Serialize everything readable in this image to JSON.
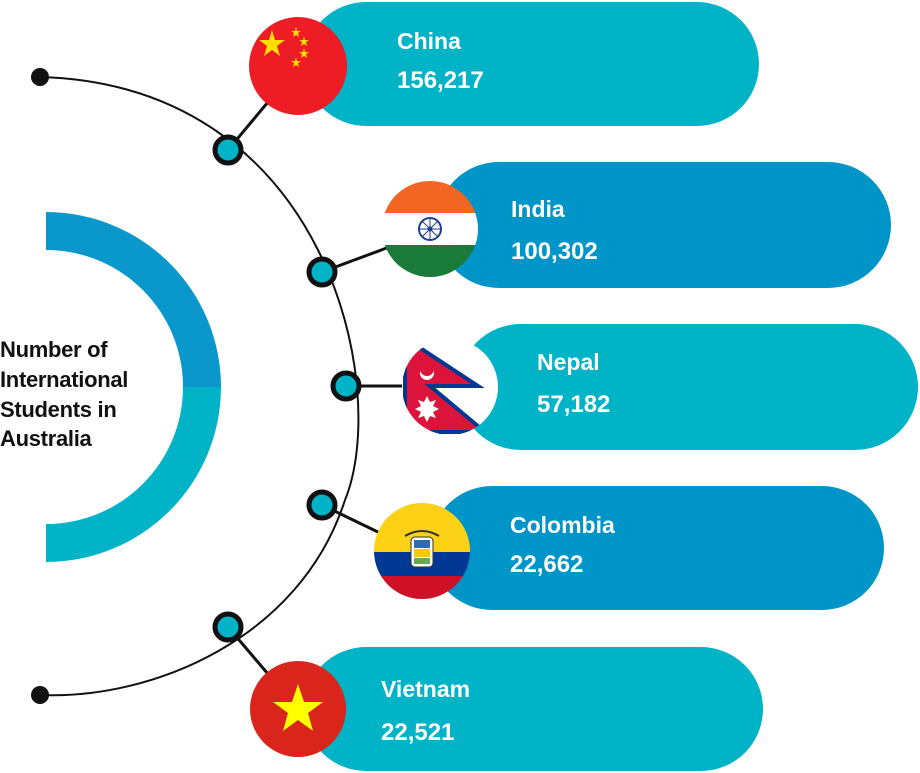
{
  "title_lines": [
    "Number of",
    "International",
    "Students in",
    "Australia"
  ],
  "colors": {
    "teal": "#00b3c6",
    "blue": "#0099cc",
    "connector": "#111111",
    "node_fill": "#00b3c6"
  },
  "countries": [
    {
      "name": "China",
      "value": "156,217",
      "flag": "china-flag",
      "pill_color": "#00b3c6"
    },
    {
      "name": "India",
      "value": "100,302",
      "flag": "india-flag",
      "pill_color": "#0095c8"
    },
    {
      "name": "Nepal",
      "value": "57,182",
      "flag": "nepal-flag",
      "pill_color": "#00b3c6"
    },
    {
      "name": "Colombia",
      "value": "22,662",
      "flag": "colombia-flag",
      "pill_color": "#0095c8"
    },
    {
      "name": "Vietnam",
      "value": "22,521",
      "flag": "vietnam-flag",
      "pill_color": "#00b3c6"
    }
  ]
}
